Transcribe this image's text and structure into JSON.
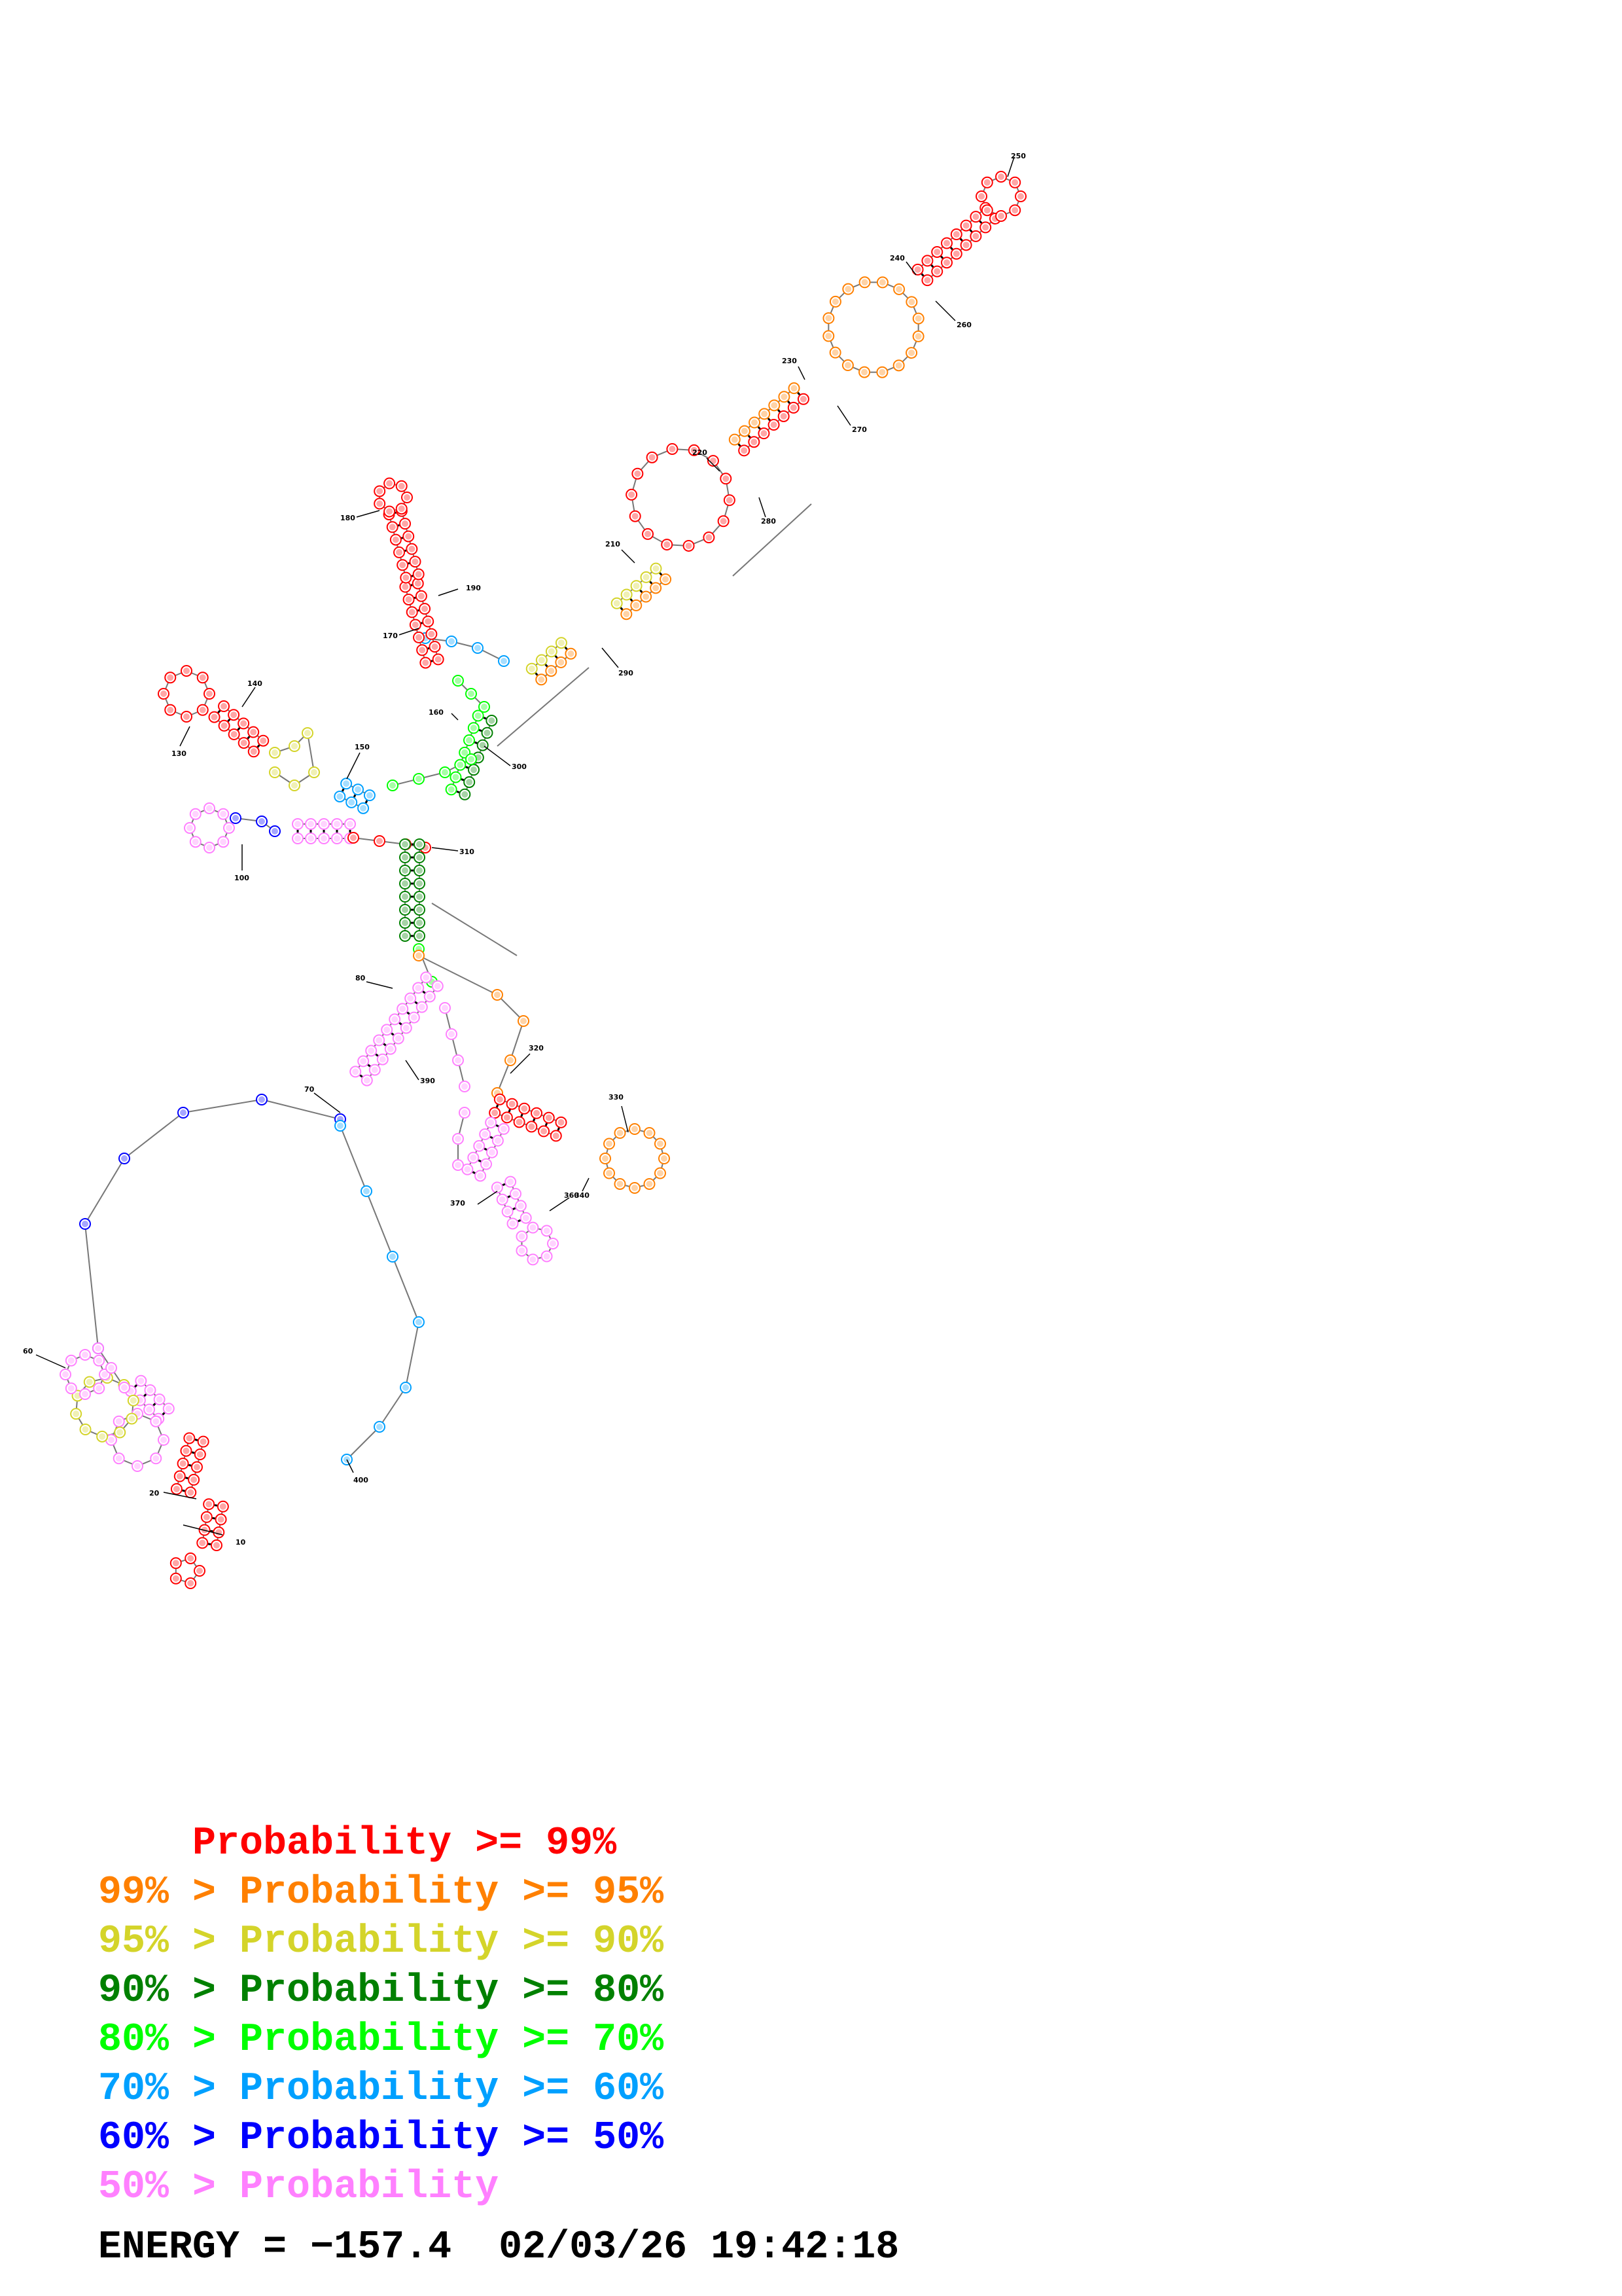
{
  "colors": {
    "p99": "#ff0000",
    "p95": "#ff8000",
    "p90": "#d4d42a",
    "p80": "#008000",
    "p70": "#00ff00",
    "p60": "#00a0ff",
    "p50": "#0000ff",
    "plow": "#ff80ff"
  },
  "diagram": {
    "tick_labels": [
      "10",
      "20",
      "60",
      "70",
      "80",
      "100",
      "130",
      "140",
      "150",
      "160",
      "170",
      "180",
      "190",
      "210",
      "220",
      "230",
      "240",
      "250",
      "260",
      "270",
      "280",
      "290",
      "300",
      "310",
      "320",
      "330",
      "340",
      "360",
      "370",
      "390",
      "400"
    ]
  },
  "legend": [
    {
      "prefix": "    ",
      "text": "Probability >= 99%",
      "color": "#ff0000"
    },
    {
      "prefix": "99% > ",
      "text": "Probability >= 95%",
      "color": "#ff8000"
    },
    {
      "prefix": "95% > ",
      "text": "Probability >= 90%",
      "color": "#d4d42a"
    },
    {
      "prefix": "90% > ",
      "text": "Probability >= 80%",
      "color": "#008000"
    },
    {
      "prefix": "80% > ",
      "text": "Probability >= 70%",
      "color": "#00ff00"
    },
    {
      "prefix": "70% > ",
      "text": "Probability >= 60%",
      "color": "#00a0ff"
    },
    {
      "prefix": "60% > ",
      "text": "Probability >= 50%",
      "color": "#0000ff"
    },
    {
      "prefix": "50% > ",
      "text": "Probability",
      "color": "#ff80ff"
    }
  ],
  "footer": {
    "energy_label": "ENERGY = ",
    "energy_value": "−157.4",
    "timestamp": "02/03/26 19:42:18"
  }
}
